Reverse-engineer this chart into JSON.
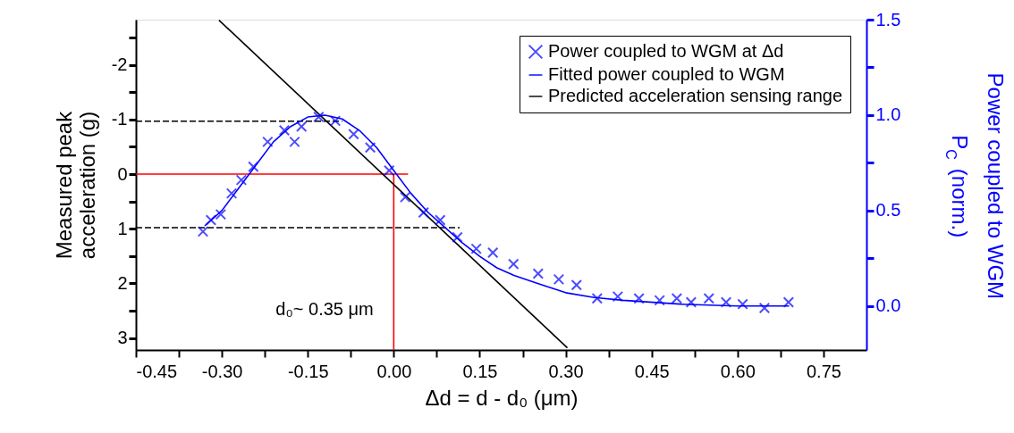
{
  "chart_data": {
    "type": "line",
    "xlabel": "Δd = d - d₀ (μm)",
    "ylabel": "Measured peak\nacceleration (g)",
    "y2label": "Power coupled to WGM\nP$_{C}$ (norm.)",
    "annotations": [
      "d₀~ 0.35 μm"
    ],
    "xlim": [
      -0.45,
      0.825
    ],
    "xticks": [
      {
        "value": -0.45,
        "label": "-0.45"
      },
      {
        "value": -0.375,
        "label": null
      },
      {
        "value": -0.3,
        "label": "-0.30"
      },
      {
        "value": -0.225,
        "label": null
      },
      {
        "value": -0.15,
        "label": "-0.15"
      },
      {
        "value": -0.075,
        "label": null
      },
      {
        "value": 0,
        "label": "0.00"
      },
      {
        "value": 0.075,
        "label": null
      },
      {
        "value": 0.15,
        "label": "0.15"
      },
      {
        "value": 0.225,
        "label": null
      },
      {
        "value": 0.3,
        "label": "0.30"
      },
      {
        "value": 0.375,
        "label": null
      },
      {
        "value": 0.45,
        "label": "0.45"
      },
      {
        "value": 0.525,
        "label": null
      },
      {
        "value": 0.6,
        "label": "0.60"
      },
      {
        "value": 0.675,
        "label": null
      },
      {
        "value": 0.75,
        "label": "0.75"
      }
    ],
    "ylim": [
      3.22,
      -2.83
    ],
    "yticks": [
      {
        "value": -2.5,
        "label": null
      },
      -2,
      {
        "value": -1.5,
        "label": null
      },
      -1,
      {
        "value": -0.5,
        "label": null
      },
      0,
      {
        "value": 0.5,
        "label": null
      },
      1,
      {
        "value": 1.5,
        "label": null
      },
      2,
      {
        "value": 2.5,
        "label": null
      },
      3
    ],
    "y2lim": [
      -0.23,
      1.5
    ],
    "y2ticks": [
      {
        "value": 0,
        "label": "0.0"
      },
      {
        "value": 0.25,
        "label": null
      },
      0.5,
      {
        "value": 0.75,
        "label": null
      },
      {
        "value": 1,
        "label": "1.0"
      },
      {
        "value": 1.25,
        "label": null
      },
      1.5
    ],
    "legend": "top right",
    "grid": false,
    "series": [
      {
        "color": "#000000",
        "line_style": "dashed",
        "x": [
          -0.45,
          -0.09
        ],
        "values": [
          -0.97,
          -0.97
        ]
      },
      {
        "color": "#000000",
        "line_style": "dashed",
        "x": [
          -0.45,
          0.115
        ],
        "values": [
          0.98,
          0.98
        ]
      },
      {
        "color": "#ff0000",
        "x": [
          -0.45,
          0.025
        ],
        "values": [
          0,
          0
        ]
      },
      {
        "color": "#ff0000",
        "x": [
          0,
          0
        ],
        "values": [
          0,
          3.22
        ]
      },
      {
        "name": "Predicted acceleration sensing range",
        "color": "#000000",
        "x": [
          -0.305,
          0.303
        ],
        "values": [
          -2.82,
          3.18
        ]
      },
      {
        "type": "scatter",
        "axis": "y2",
        "marker": "cross",
        "name": "Power coupled to WGM at Δd",
        "color": "#0000ff",
        "x": [
          -0.333,
          -0.319,
          -0.302,
          -0.283,
          -0.266,
          -0.245,
          -0.22,
          -0.191,
          -0.173,
          -0.161,
          -0.131,
          -0.102,
          -0.07,
          -0.041,
          -0.008,
          0.02,
          0.052,
          0.081,
          0.111,
          0.144,
          0.173,
          0.209,
          0.252,
          0.288,
          0.319,
          0.355,
          0.391,
          0.428,
          0.464,
          0.494,
          0.519,
          0.55,
          0.58,
          0.609,
          0.647,
          0.689
        ],
        "values": [
          0.39,
          0.45,
          0.48,
          0.59,
          0.66,
          0.73,
          0.86,
          0.92,
          0.86,
          0.94,
          0.99,
          0.97,
          0.9,
          0.83,
          0.71,
          0.57,
          0.49,
          0.45,
          0.36,
          0.3,
          0.28,
          0.22,
          0.17,
          0.14,
          0.11,
          0.04,
          0.05,
          0.04,
          0.03,
          0.04,
          0.02,
          0.04,
          0.02,
          0.01,
          -0.01,
          0.02
        ]
      },
      {
        "axis": "y2",
        "name": "Fitted power coupled to WGM",
        "color": "#0000ff",
        "x": [
          -0.33,
          -0.3,
          -0.27,
          -0.24,
          -0.21,
          -0.18,
          -0.15,
          -0.12,
          -0.09,
          -0.06,
          -0.03,
          0,
          0.03,
          0.06,
          0.09,
          0.12,
          0.15,
          0.18,
          0.21,
          0.25,
          0.3,
          0.35,
          0.4,
          0.5,
          0.6,
          0.69
        ],
        "values": [
          0.42,
          0.5,
          0.62,
          0.74,
          0.86,
          0.94,
          0.99,
          1.0,
          0.98,
          0.92,
          0.83,
          0.71,
          0.59,
          0.49,
          0.41,
          0.33,
          0.26,
          0.2,
          0.16,
          0.12,
          0.07,
          0.045,
          0.03,
          0.01,
          0.0,
          0.0
        ]
      }
    ]
  }
}
